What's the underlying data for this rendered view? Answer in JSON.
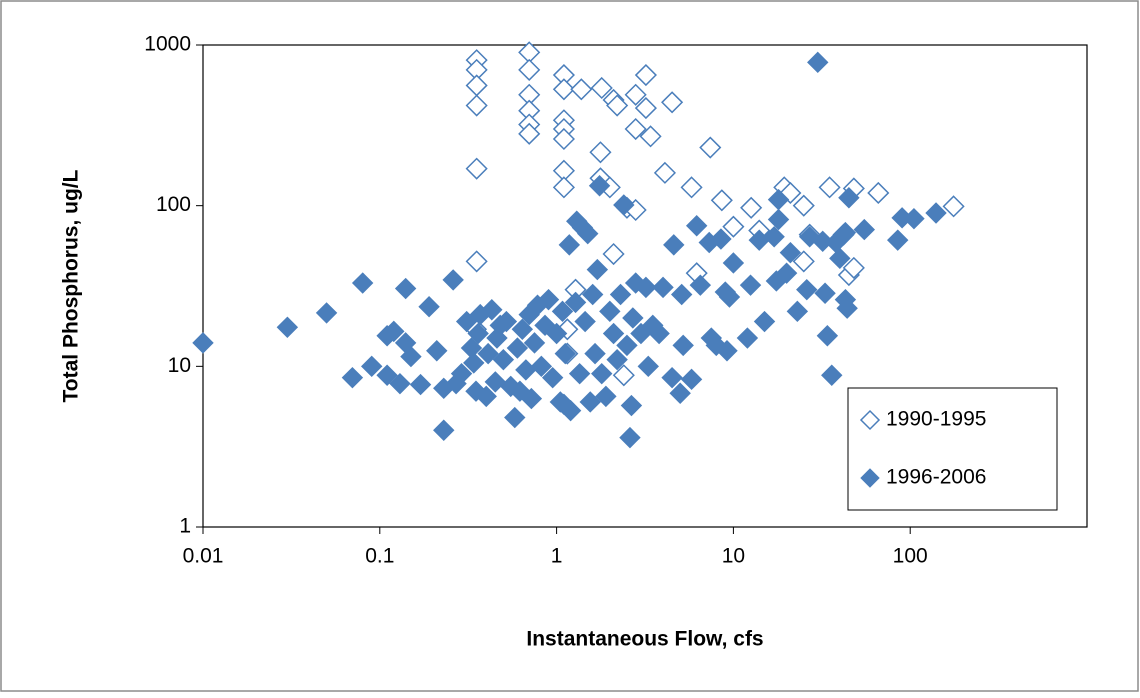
{
  "chart_data": {
    "type": "scatter",
    "x_label": "Instantaneous Flow, cfs",
    "y_label": "Total Phosphorus,  ug/L",
    "xscale": "log",
    "yscale": "log",
    "xlim": [
      0.01,
      1000
    ],
    "ylim": [
      1,
      1000
    ],
    "xticks": [
      0.01,
      0.1,
      1,
      10,
      100
    ],
    "yticks": [
      1,
      10,
      100,
      1000
    ],
    "grid": false,
    "legend": "lower right",
    "series": [
      {
        "name": "1990-1995",
        "color": "#4a7ebb",
        "marker": "open",
        "x": [
          0.353,
          0.353,
          0.353,
          0.353,
          0.353,
          0.353,
          0.7,
          0.7,
          0.7,
          0.7,
          0.7,
          0.7,
          1.1,
          1.1,
          1.1,
          1.1,
          1.1,
          1.1,
          1.1,
          1.38,
          1.8,
          2.1,
          2.2,
          2.8,
          2.8,
          3.2,
          3.2,
          3.4,
          4.5,
          4.1,
          5.8,
          7.4,
          8.6,
          1.77,
          1.77,
          2.0,
          2.5,
          2.8,
          2.1,
          12.6,
          14,
          19.4,
          21,
          25,
          27,
          25,
          35,
          48,
          42,
          45,
          48,
          66,
          176,
          10,
          6.2,
          1.15,
          1.15,
          2.4,
          1.28,
          0.35
        ],
        "values": [
          805,
          700,
          560,
          420,
          170,
          45,
          900,
          700,
          490,
          390,
          320,
          280,
          650,
          530,
          340,
          300,
          260,
          165,
          130,
          530,
          540,
          455,
          420,
          490,
          300,
          650,
          405,
          270,
          440,
          160,
          130,
          230,
          108,
          215,
          148,
          130,
          97,
          94,
          50,
          97,
          70,
          130,
          120,
          100,
          66,
          45,
          130,
          128,
          66,
          37,
          41,
          120,
          99,
          74,
          38,
          17,
          12,
          8.8,
          30,
          17
        ]
      },
      {
        "name": "1996-2006",
        "color": "#4a7ebb",
        "marker": "filled",
        "x": [
          0.01,
          0.03,
          0.05,
          0.07,
          0.08,
          0.09,
          0.11,
          0.11,
          0.12,
          0.13,
          0.14,
          0.14,
          0.15,
          0.17,
          0.19,
          0.21,
          0.23,
          0.23,
          0.26,
          0.27,
          0.29,
          0.31,
          0.33,
          0.34,
          0.35,
          0.36,
          0.37,
          0.4,
          0.41,
          0.43,
          0.45,
          0.46,
          0.48,
          0.5,
          0.52,
          0.55,
          0.58,
          0.6,
          0.62,
          0.64,
          0.67,
          0.7,
          0.72,
          0.75,
          0.78,
          0.82,
          0.86,
          0.9,
          0.95,
          1.0,
          1.05,
          1.08,
          1.1,
          1.12,
          1.18,
          1.2,
          1.28,
          1.3,
          1.35,
          1.4,
          1.45,
          1.5,
          1.55,
          1.6,
          1.65,
          1.7,
          1.75,
          1.8,
          1.9,
          2.0,
          2.1,
          2.2,
          2.3,
          2.4,
          2.5,
          2.6,
          2.65,
          2.7,
          2.8,
          3.0,
          3.2,
          3.3,
          3.5,
          3.8,
          4.0,
          4.5,
          4.6,
          5.0,
          5.1,
          5.2,
          5.8,
          6.2,
          6.5,
          7.3,
          7.5,
          8,
          8.5,
          9,
          9.2,
          9.5,
          10,
          12,
          12.5,
          14,
          15,
          17,
          17.5,
          18,
          18,
          20,
          21,
          23,
          26,
          27,
          30,
          32,
          33,
          34,
          36,
          38,
          40,
          43,
          43,
          44,
          45,
          55,
          85,
          90,
          105,
          140
        ],
        "values": [
          14,
          17.5,
          21.5,
          8.5,
          33,
          10,
          8.8,
          15.5,
          16.5,
          7.8,
          30.5,
          14,
          11.5,
          7.7,
          23.5,
          12.5,
          4.0,
          7.3,
          34.5,
          7.8,
          9,
          19,
          13,
          10.5,
          7,
          16,
          21,
          6.5,
          12,
          22.5,
          8,
          15,
          18,
          11,
          19,
          7.5,
          4.8,
          13,
          7,
          17,
          9.5,
          21,
          6.3,
          14,
          24,
          10,
          18,
          26,
          8.5,
          16,
          6,
          22,
          5.8,
          12,
          57,
          5.3,
          25,
          80,
          9,
          73,
          19,
          67,
          6,
          28,
          12,
          40,
          133,
          9,
          6.5,
          22,
          16,
          11,
          28,
          101,
          13.5,
          3.6,
          5.7,
          20,
          33,
          16,
          31,
          10,
          18,
          16,
          31,
          8.5,
          57,
          6.8,
          28,
          13.5,
          8.3,
          75,
          32,
          59,
          15,
          13.5,
          62,
          29,
          12.5,
          27,
          44,
          15,
          32,
          61,
          19,
          64,
          34,
          82,
          109,
          38,
          51,
          22,
          30,
          64,
          780,
          60,
          28.5,
          15.5,
          8.8,
          59,
          47,
          68,
          26,
          23,
          112,
          71,
          61,
          84,
          83,
          90
        ]
      }
    ]
  }
}
